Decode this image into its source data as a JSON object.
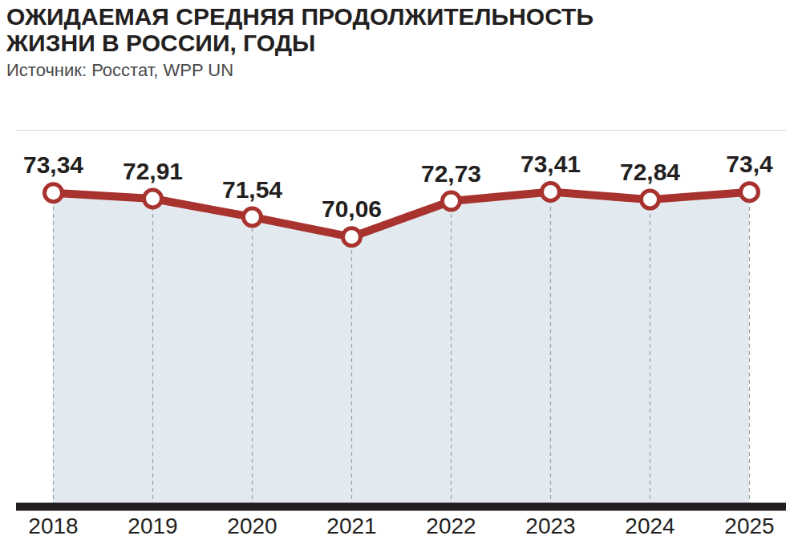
{
  "chart_data": {
    "type": "line",
    "title": "ОЖИДАЕМАЯ СРЕДНЯЯ ПРОДОЛЖИТЕЛЬНОСТЬ ЖИЗНИ В РОССИИ, ГОДЫ",
    "subtitle": "Источник: Росстат, WPP UN",
    "categories": [
      "2018",
      "2019",
      "2020",
      "2021",
      "2022",
      "2023",
      "2024",
      "2025"
    ],
    "values": [
      73.34,
      72.91,
      71.54,
      70.06,
      72.73,
      73.41,
      72.84,
      73.4
    ],
    "value_labels": [
      "73,34",
      "72,91",
      "71,54",
      "70,06",
      "72,73",
      "73,41",
      "72,84",
      "73,4"
    ],
    "color": "#a8322d",
    "marker": "circle",
    "line_style": "solid",
    "ylim": [
      50,
      78
    ],
    "yticks": [],
    "tick_labels": "x",
    "data_labels": true
  }
}
